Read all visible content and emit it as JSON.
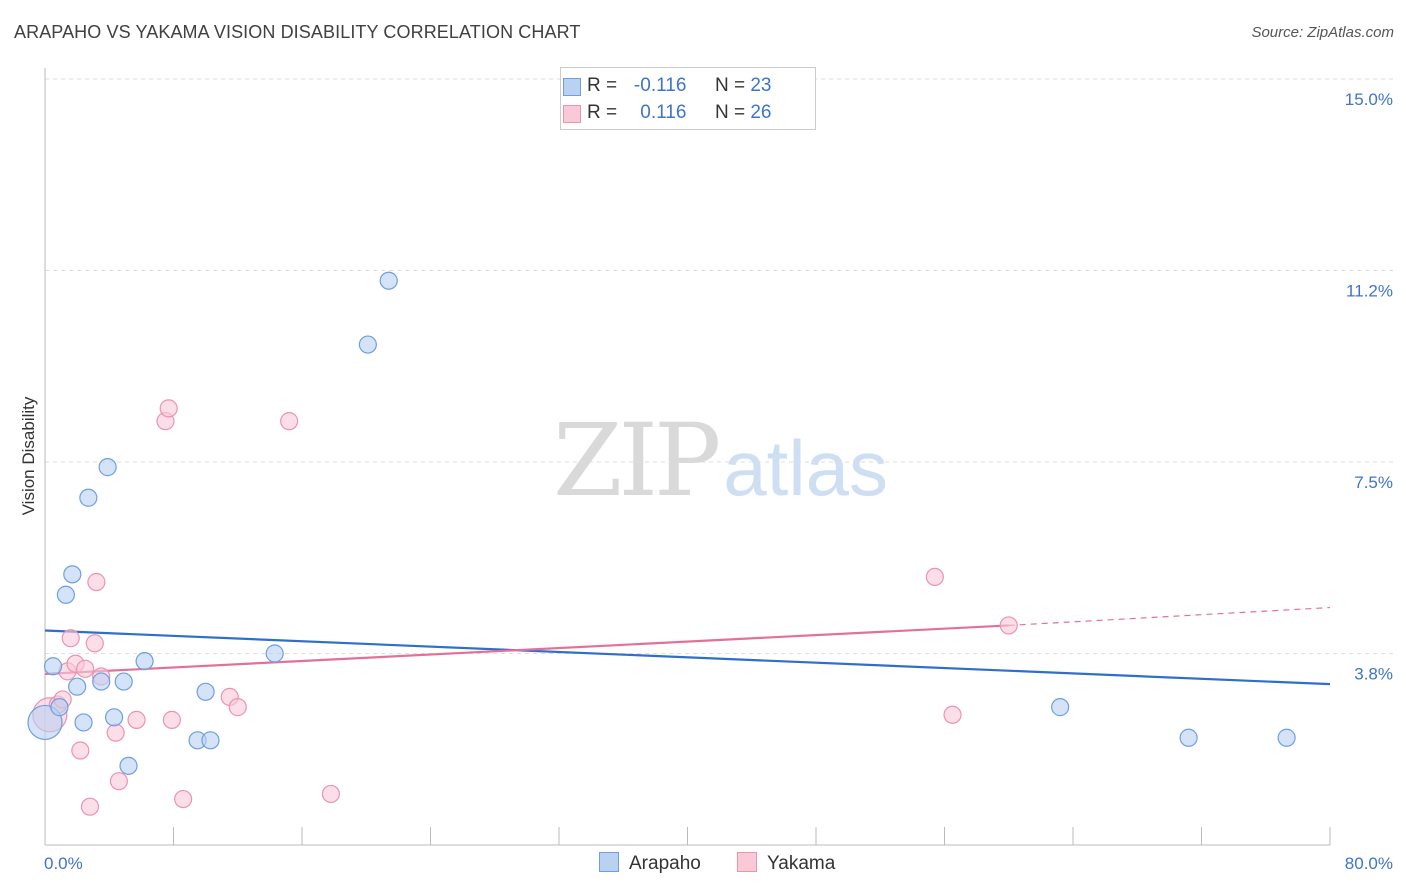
{
  "header": {
    "title": "ARAPAHO VS YAKAMA VISION DISABILITY CORRELATION CHART",
    "source": "Source: ZipAtlas.com"
  },
  "watermark": {
    "zip": "ZIP",
    "atlas": "atlas"
  },
  "legend_top": {
    "rows": [
      {
        "r_label": "R =",
        "r_value": "-0.116",
        "n_label": "N =",
        "n_value": "23",
        "color": "#aecbf0"
      },
      {
        "r_label": "R =",
        "r_value": "0.116",
        "n_label": "N =",
        "n_value": "26",
        "color": "#f9c0d2"
      }
    ]
  },
  "legend_bottom": {
    "series_a": "Arapaho",
    "series_b": "Yakama"
  },
  "colors": {
    "arapaho_fill": "#b9d2f2",
    "arapaho_stroke": "#6f9fe0",
    "arapaho_line": "#2e6fcc",
    "yakama_fill": "#f9c9d8",
    "yakama_stroke": "#ec93b2",
    "yakama_line": "#e4709a",
    "tick_text": "#3f74c9",
    "grid": "#dddddd"
  },
  "chart_data": {
    "type": "scatter",
    "title": "ARAPAHO VS YAKAMA VISION DISABILITY CORRELATION CHART",
    "xlabel": "",
    "ylabel": "Vision Disability",
    "xlim": [
      0,
      80
    ],
    "ylim": [
      0,
      15
    ],
    "x_tick_labels": [
      "0.0%",
      "80.0%"
    ],
    "y_ticks": [
      3.75,
      7.5,
      11.25,
      15.0
    ],
    "y_tick_labels": [
      "3.8%",
      "7.5%",
      "11.2%",
      "15.0%"
    ],
    "grid": true,
    "legend": "top-center",
    "series": [
      {
        "name": "Arapaho",
        "R": -0.116,
        "N": 23,
        "points": [
          {
            "x": 0.0,
            "y": 2.4,
            "big": true
          },
          {
            "x": 0.5,
            "y": 3.5
          },
          {
            "x": 0.9,
            "y": 2.7
          },
          {
            "x": 1.3,
            "y": 4.9
          },
          {
            "x": 1.7,
            "y": 5.3
          },
          {
            "x": 2.0,
            "y": 3.1
          },
          {
            "x": 2.4,
            "y": 2.4
          },
          {
            "x": 2.7,
            "y": 6.8
          },
          {
            "x": 3.5,
            "y": 3.2
          },
          {
            "x": 3.9,
            "y": 7.4
          },
          {
            "x": 4.3,
            "y": 2.5
          },
          {
            "x": 4.9,
            "y": 3.2
          },
          {
            "x": 5.2,
            "y": 1.55
          },
          {
            "x": 6.2,
            "y": 3.6
          },
          {
            "x": 9.5,
            "y": 2.05
          },
          {
            "x": 10.0,
            "y": 3.0
          },
          {
            "x": 10.3,
            "y": 2.05
          },
          {
            "x": 14.3,
            "y": 3.75
          },
          {
            "x": 20.1,
            "y": 9.8
          },
          {
            "x": 21.4,
            "y": 11.05
          },
          {
            "x": 63.2,
            "y": 2.7
          },
          {
            "x": 71.2,
            "y": 2.1
          },
          {
            "x": 77.3,
            "y": 2.1
          }
        ],
        "trend": {
          "x0": 0,
          "y0": 4.2,
          "x1": 80,
          "y1": 3.15
        }
      },
      {
        "name": "Yakama",
        "R": 0.116,
        "N": 26,
        "points": [
          {
            "x": 0.3,
            "y": 2.55,
            "big": true
          },
          {
            "x": 0.8,
            "y": 2.75
          },
          {
            "x": 1.1,
            "y": 2.85
          },
          {
            "x": 1.4,
            "y": 3.4
          },
          {
            "x": 1.6,
            "y": 4.05
          },
          {
            "x": 1.9,
            "y": 3.55
          },
          {
            "x": 2.2,
            "y": 1.85
          },
          {
            "x": 2.5,
            "y": 3.45
          },
          {
            "x": 2.8,
            "y": 0.75
          },
          {
            "x": 3.1,
            "y": 3.95
          },
          {
            "x": 3.2,
            "y": 5.15
          },
          {
            "x": 3.5,
            "y": 3.3
          },
          {
            "x": 4.4,
            "y": 2.2
          },
          {
            "x": 4.6,
            "y": 1.25
          },
          {
            "x": 5.7,
            "y": 2.45
          },
          {
            "x": 7.5,
            "y": 8.3
          },
          {
            "x": 7.7,
            "y": 8.55
          },
          {
            "x": 7.9,
            "y": 2.45
          },
          {
            "x": 8.6,
            "y": 0.9
          },
          {
            "x": 11.5,
            "y": 2.9
          },
          {
            "x": 12.0,
            "y": 2.7
          },
          {
            "x": 15.2,
            "y": 8.3
          },
          {
            "x": 17.8,
            "y": 1.0
          },
          {
            "x": 55.4,
            "y": 5.25
          },
          {
            "x": 56.5,
            "y": 2.55
          },
          {
            "x": 60.0,
            "y": 4.3
          }
        ],
        "trend": {
          "x0": 0,
          "y0": 3.35,
          "x1": 60,
          "y1": 4.3
        },
        "trend_dashed": {
          "x0": 60,
          "y0": 4.3,
          "x1": 80,
          "y1": 4.65
        }
      }
    ]
  }
}
